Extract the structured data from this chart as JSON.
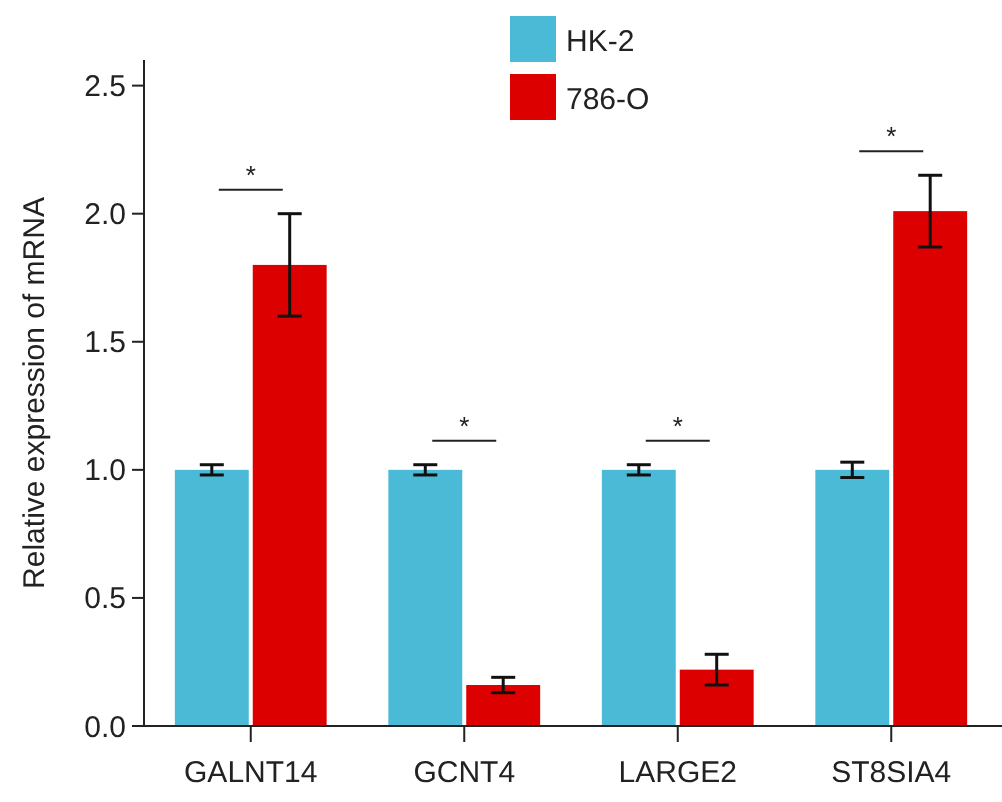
{
  "chart_data": {
    "type": "bar",
    "ylabel": "Relative expression of mRNA",
    "categories": [
      "GALNT14",
      "GCNT4",
      "LARGE2",
      "ST8SIA4"
    ],
    "series": [
      {
        "name": "HK-2",
        "color": "#4bbad6",
        "values": [
          1.0,
          1.0,
          1.0,
          1.0
        ],
        "errors": [
          0.02,
          0.02,
          0.02,
          0.03
        ]
      },
      {
        "name": "786-O",
        "color": "#dd0000",
        "values": [
          1.8,
          0.16,
          0.22,
          2.01
        ],
        "errors": [
          0.2,
          0.03,
          0.06,
          0.14
        ]
      }
    ],
    "ylim": [
      0,
      2.6
    ],
    "yticks": [
      {
        "value": 0,
        "label": "0.0"
      },
      0.5,
      {
        "value": 1,
        "label": "1.0"
      },
      1.5,
      {
        "value": 2,
        "label": "2.0"
      },
      2.5
    ],
    "annotations": [
      "*",
      "*",
      "*",
      "*"
    ],
    "legend": "top",
    "grid": false
  }
}
